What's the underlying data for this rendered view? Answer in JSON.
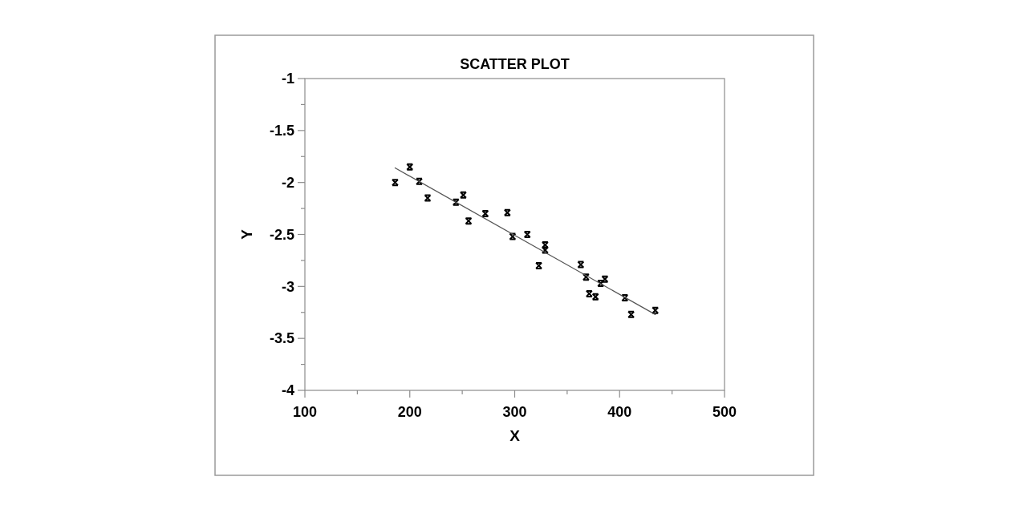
{
  "chart_data": {
    "type": "scatter",
    "title": "SCATTER PLOT",
    "xlabel": "X",
    "ylabel": "Y",
    "xlim": [
      100,
      500
    ],
    "xticks": [
      100,
      {
        "value": 150,
        "label": null
      },
      200,
      {
        "value": 250,
        "label": null
      },
      300,
      {
        "value": 350,
        "label": null
      },
      400,
      {
        "value": 450,
        "label": null
      },
      500
    ],
    "ylim": [
      -4,
      -1
    ],
    "yticks": [
      -4,
      {
        "value": -3.75,
        "label": null
      },
      -3.5,
      {
        "value": -3.25,
        "label": null
      },
      -3,
      {
        "value": -2.75,
        "label": null
      },
      -2.5,
      {
        "value": -2.25,
        "label": null
      },
      -2,
      {
        "value": -1.75,
        "label": null
      },
      -1.5,
      {
        "value": -1.25,
        "label": null
      },
      -1
    ],
    "marker": "cross",
    "series": [
      {
        "color": "#000000",
        "x": [
          186,
          200,
          209,
          217,
          244,
          251,
          256,
          272,
          293,
          298,
          312,
          323,
          329,
          329,
          363,
          368,
          371,
          377,
          382,
          386,
          405,
          411,
          434
        ],
        "values": [
          -2.0,
          -1.85,
          -1.99,
          -2.15,
          -2.19,
          -2.12,
          -2.37,
          -2.3,
          -2.29,
          -2.52,
          -2.5,
          -2.8,
          -2.6,
          -2.65,
          -2.79,
          -2.91,
          -3.07,
          -3.1,
          -2.97,
          -2.93,
          -3.11,
          -3.27,
          -3.23
        ]
      },
      {
        "type": "line",
        "color": "#555555",
        "line_style": "solid",
        "marker": "none",
        "x": [
          186,
          434
        ],
        "values": [
          -1.86,
          -3.27
        ]
      }
    ]
  }
}
